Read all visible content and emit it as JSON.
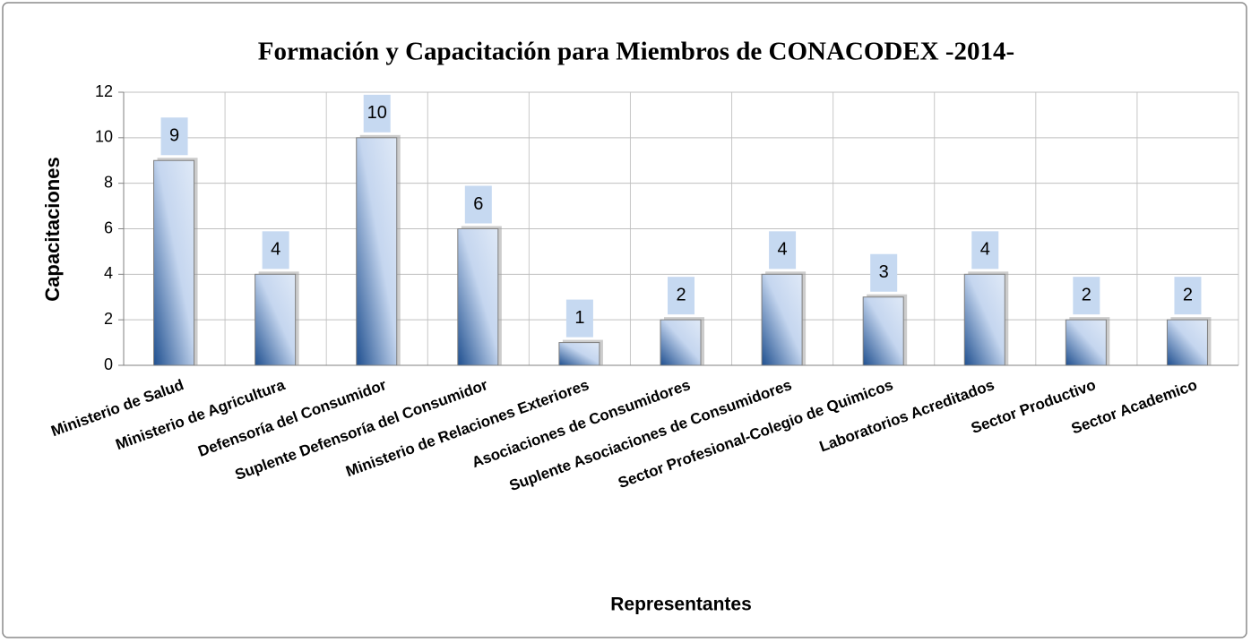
{
  "chart_data": {
    "type": "bar",
    "title": "Formación y Capacitación para Miembros de CONACODEX -2014-",
    "x_label": "Representantes",
    "y_label": "Capacitaciones",
    "categories": [
      "Ministerio de Salud",
      "Ministerio de Agricultura",
      "Defensoría del Consumidor",
      "Suplente Defensoría del Consumidor",
      "Ministerio de Relaciones Exteriores",
      "Asociaciones de Consumidores",
      "Suplente Asociaciones de Consumidores",
      "Sector Profesional-Colegio de Quimicos",
      "Laboratorios Acreditados",
      "Sector Productivo",
      "Sector Academico"
    ],
    "values": [
      9,
      4,
      10,
      6,
      1,
      2,
      4,
      3,
      4,
      2,
      2
    ],
    "color": "#1f4f8f",
    "ylim": [
      0,
      12
    ],
    "yticks": [
      0,
      2,
      4,
      6,
      8,
      10,
      12
    ],
    "grid": true
  }
}
